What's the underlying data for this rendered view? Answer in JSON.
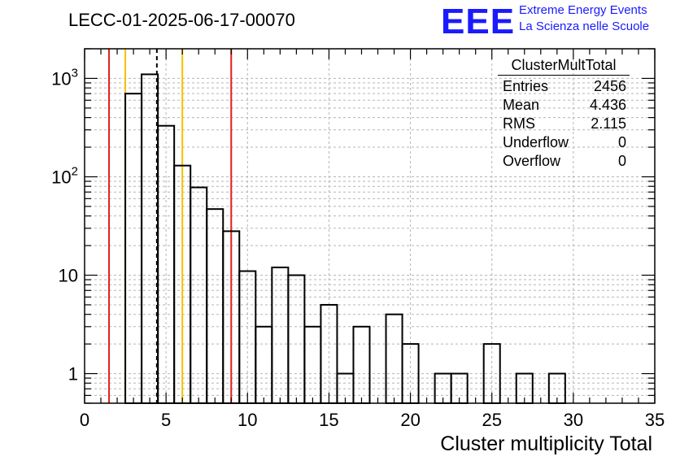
{
  "title": "LECC-01-2025-06-17-00070",
  "logo": {
    "mark": "EEE",
    "line1": "Extreme Energy Events",
    "line2": "La Scienza nelle Scuole"
  },
  "stats": {
    "name": "ClusterMultTotal",
    "rows": [
      {
        "label": "Entries",
        "value": "2456"
      },
      {
        "label": "Mean",
        "value": "4.436"
      },
      {
        "label": "RMS",
        "value": "2.115"
      },
      {
        "label": "Underflow",
        "value": "0"
      },
      {
        "label": "Overflow",
        "value": "0"
      }
    ]
  },
  "colors": {
    "hist": "#000000",
    "red": "#e0201c",
    "yellow": "#f2c200",
    "grid": "#b5b5b5"
  },
  "chart_data": {
    "type": "bar",
    "xlabel": "Cluster multiplicity Total",
    "ylabel": "",
    "log_y": true,
    "xlim": [
      0,
      35
    ],
    "ylim": [
      0.5,
      2000
    ],
    "grid": true,
    "x_ticks": [
      0,
      5,
      10,
      15,
      20,
      25,
      30,
      35
    ],
    "y_ticks": [
      {
        "value": 1,
        "label": "1"
      },
      {
        "value": 10,
        "label": "10"
      },
      {
        "value": 100,
        "label": "10",
        "exp": "2"
      },
      {
        "value": 1000,
        "label": "10",
        "exp": "3"
      }
    ],
    "bin_width": 1,
    "bins": [
      {
        "x0": 2.5,
        "value": 700
      },
      {
        "x0": 3.5,
        "value": 1100
      },
      {
        "x0": 4.5,
        "value": 330
      },
      {
        "x0": 5.5,
        "value": 130
      },
      {
        "x0": 6.5,
        "value": 78
      },
      {
        "x0": 7.5,
        "value": 47
      },
      {
        "x0": 8.5,
        "value": 28
      },
      {
        "x0": 9.5,
        "value": 11
      },
      {
        "x0": 10.5,
        "value": 3
      },
      {
        "x0": 11.5,
        "value": 12
      },
      {
        "x0": 12.5,
        "value": 10
      },
      {
        "x0": 13.5,
        "value": 3
      },
      {
        "x0": 14.5,
        "value": 5
      },
      {
        "x0": 15.5,
        "value": 1
      },
      {
        "x0": 16.5,
        "value": 3
      },
      {
        "x0": 17.5,
        "value": 0
      },
      {
        "x0": 18.5,
        "value": 4
      },
      {
        "x0": 19.5,
        "value": 2
      },
      {
        "x0": 20.5,
        "value": 0
      },
      {
        "x0": 21.5,
        "value": 1
      },
      {
        "x0": 22.5,
        "value": 1
      },
      {
        "x0": 23.5,
        "value": 0
      },
      {
        "x0": 24.5,
        "value": 2
      },
      {
        "x0": 25.5,
        "value": 0
      },
      {
        "x0": 26.5,
        "value": 1
      },
      {
        "x0": 27.5,
        "value": 0
      },
      {
        "x0": 28.5,
        "value": 1
      }
    ],
    "vlines": [
      {
        "x": 1.5,
        "color": "red",
        "style": "solid"
      },
      {
        "x": 2.5,
        "color": "yellow",
        "style": "solid"
      },
      {
        "x": 4.436,
        "color": "black",
        "style": "dashed"
      },
      {
        "x": 6.0,
        "color": "yellow",
        "style": "solid"
      },
      {
        "x": 9.0,
        "color": "red",
        "style": "solid"
      }
    ]
  }
}
